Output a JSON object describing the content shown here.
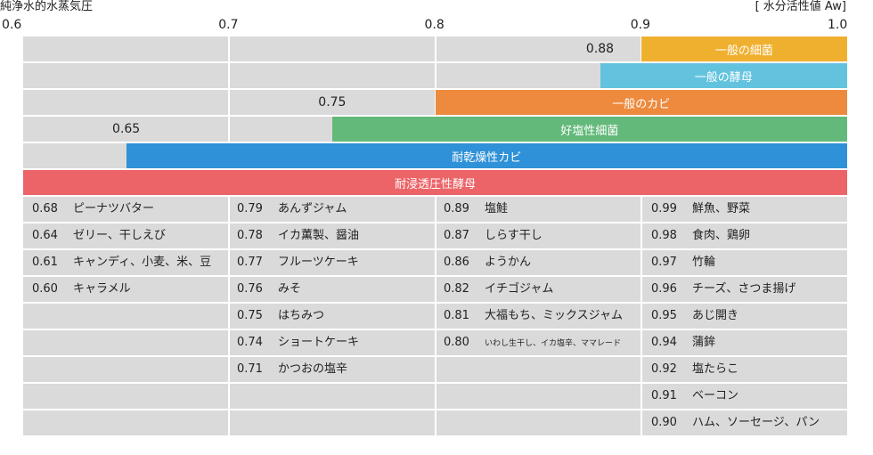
{
  "chart_data": {
    "type": "range_bar_table",
    "left_title": "純浄水的水蒸気圧",
    "right_title": "[ 水分活性値 Aw]",
    "x_ticks": [
      "0.6",
      "0.7",
      "0.8",
      "0.9",
      "1.0"
    ],
    "xlim": [
      0.6,
      1.0
    ],
    "ranges": [
      {
        "name": "一般の細菌",
        "min": 0.9,
        "max": 1.0,
        "color": "#f0b02f",
        "threshold_label": "0.88",
        "threshold_value": 0.88
      },
      {
        "name": "一般の酵母",
        "min": 0.88,
        "max": 1.0,
        "color": "#63c3df",
        "threshold_label": "",
        "threshold_value": null
      },
      {
        "name": "一般のカビ",
        "min": 0.8,
        "max": 1.0,
        "color": "#ed8a3e",
        "threshold_label": "0.75",
        "threshold_value": 0.75
      },
      {
        "name": "好塩性細菌",
        "min": 0.75,
        "max": 1.0,
        "color": "#63b97a",
        "threshold_label": "0.65",
        "threshold_value": 0.65
      },
      {
        "name": "耐乾燥性カビ",
        "min": 0.65,
        "max": 1.0,
        "color": "#2f91d7",
        "threshold_label": "",
        "threshold_value": null
      },
      {
        "name": "耐浸透圧性酵母",
        "min": 0.6,
        "max": 1.0,
        "color": "#ec6467",
        "threshold_label": "",
        "threshold_value": null
      }
    ],
    "food_columns": [
      [
        {
          "aw": "0.68",
          "name": "ピーナツバター"
        },
        {
          "aw": "0.64",
          "name": "ゼリー、干しえび"
        },
        {
          "aw": "0.61",
          "name": "キャンディ、小麦、米、豆"
        },
        {
          "aw": "0.60",
          "name": "キャラメル"
        }
      ],
      [
        {
          "aw": "0.79",
          "name": "あんずジャム"
        },
        {
          "aw": "0.78",
          "name": "イカ薫製、醤油"
        },
        {
          "aw": "0.77",
          "name": "フルーツケーキ"
        },
        {
          "aw": "0.76",
          "name": "みそ"
        },
        {
          "aw": "0.75",
          "name": "はちみつ"
        },
        {
          "aw": "0.74",
          "name": "ショートケーキ"
        },
        {
          "aw": "0.71",
          "name": "かつおの塩辛"
        }
      ],
      [
        {
          "aw": "0.89",
          "name": "塩鮭"
        },
        {
          "aw": "0.87",
          "name": "しらす干し"
        },
        {
          "aw": "0.86",
          "name": "ようかん"
        },
        {
          "aw": "0.82",
          "name": "イチゴジャム"
        },
        {
          "aw": "0.81",
          "name": "大福もち、ミックスジャム"
        },
        {
          "aw": "0.80",
          "name": "いわし生干し、イカ塩辛、ママレード"
        }
      ],
      [
        {
          "aw": "0.99",
          "name": "鮮魚、野菜"
        },
        {
          "aw": "0.98",
          "name": "食肉、鶏卵"
        },
        {
          "aw": "0.97",
          "name": "竹輪"
        },
        {
          "aw": "0.96",
          "name": "チーズ、さつま揚げ"
        },
        {
          "aw": "0.95",
          "name": "あじ開き"
        },
        {
          "aw": "0.94",
          "name": "蒲鉾"
        },
        {
          "aw": "0.92",
          "name": "塩たらこ"
        },
        {
          "aw": "0.91",
          "name": "ベーコン"
        },
        {
          "aw": "0.90",
          "name": "ハム、ソーセージ、パン"
        }
      ]
    ]
  }
}
